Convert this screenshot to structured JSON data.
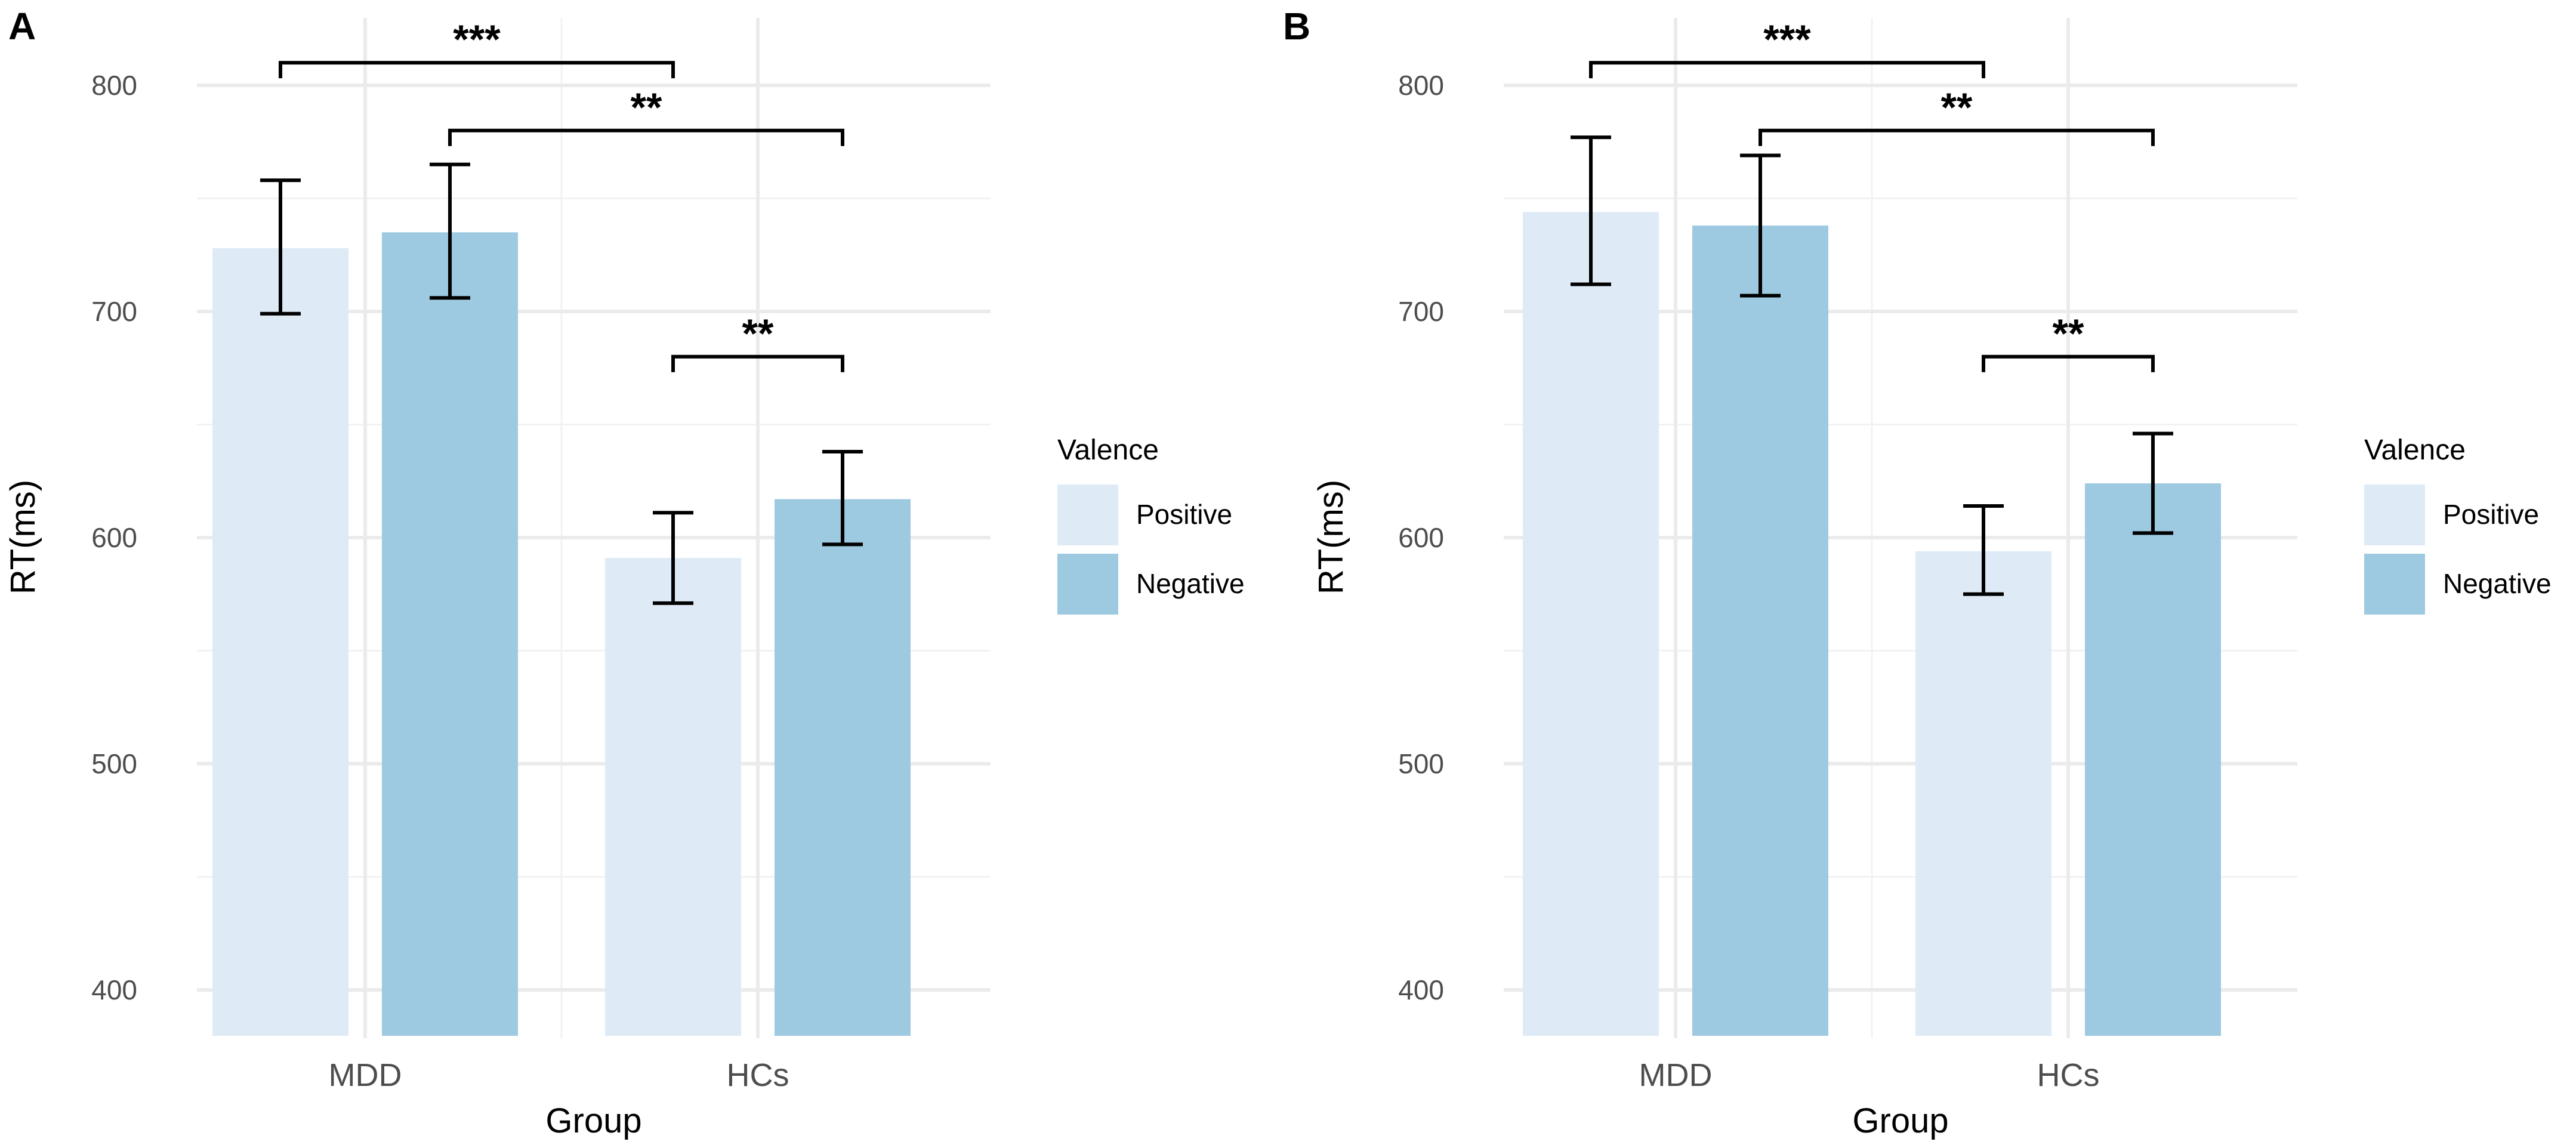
{
  "figure": {
    "panels": [
      "A",
      "B"
    ]
  },
  "chart_data": [
    {
      "panel": "A",
      "type": "bar",
      "categories": [
        "MDD",
        "HCs"
      ],
      "xlabel": "Group",
      "ylabel": "RT(ms)",
      "ylim": [
        380,
        830
      ],
      "yticks": [
        400,
        500,
        600,
        700,
        800
      ],
      "grid": true,
      "legend": {
        "title": "Valence",
        "placement": "right"
      },
      "series": [
        {
          "name": "Positive",
          "color": "#deebf7",
          "values": [
            728,
            591
          ],
          "errors": [
            [
              699,
              758
            ],
            [
              571,
              611
            ]
          ]
        },
        {
          "name": "Negative",
          "color": "#9ecae1",
          "values": [
            735,
            617
          ],
          "errors": [
            [
              706,
              765
            ],
            [
              597,
              638
            ]
          ]
        }
      ],
      "annotations": [
        {
          "label": "***",
          "from": [
            0,
            0
          ],
          "to": [
            1,
            0
          ],
          "y": 810
        },
        {
          "label": "**",
          "from": [
            0,
            1
          ],
          "to": [
            1,
            1
          ],
          "y": 780
        },
        {
          "label": "**",
          "from": [
            1,
            0
          ],
          "to": [
            1,
            1
          ],
          "y": 680
        }
      ]
    },
    {
      "panel": "B",
      "type": "bar",
      "categories": [
        "MDD",
        "HCs"
      ],
      "xlabel": "Group",
      "ylabel": "RT(ms)",
      "ylim": [
        380,
        830
      ],
      "yticks": [
        400,
        500,
        600,
        700,
        800
      ],
      "grid": true,
      "legend": {
        "title": "Valence",
        "placement": "right"
      },
      "series": [
        {
          "name": "Positive",
          "color": "#deebf7",
          "values": [
            744,
            594
          ],
          "errors": [
            [
              712,
              777
            ],
            [
              575,
              614
            ]
          ]
        },
        {
          "name": "Negative",
          "color": "#9ecae1",
          "values": [
            738,
            624
          ],
          "errors": [
            [
              707,
              769
            ],
            [
              602,
              646
            ]
          ]
        }
      ],
      "annotations": [
        {
          "label": "***",
          "from": [
            0,
            0
          ],
          "to": [
            1,
            0
          ],
          "y": 810
        },
        {
          "label": "**",
          "from": [
            0,
            1
          ],
          "to": [
            1,
            1
          ],
          "y": 780
        },
        {
          "label": "**",
          "from": [
            1,
            0
          ],
          "to": [
            1,
            1
          ],
          "y": 680
        }
      ]
    }
  ]
}
